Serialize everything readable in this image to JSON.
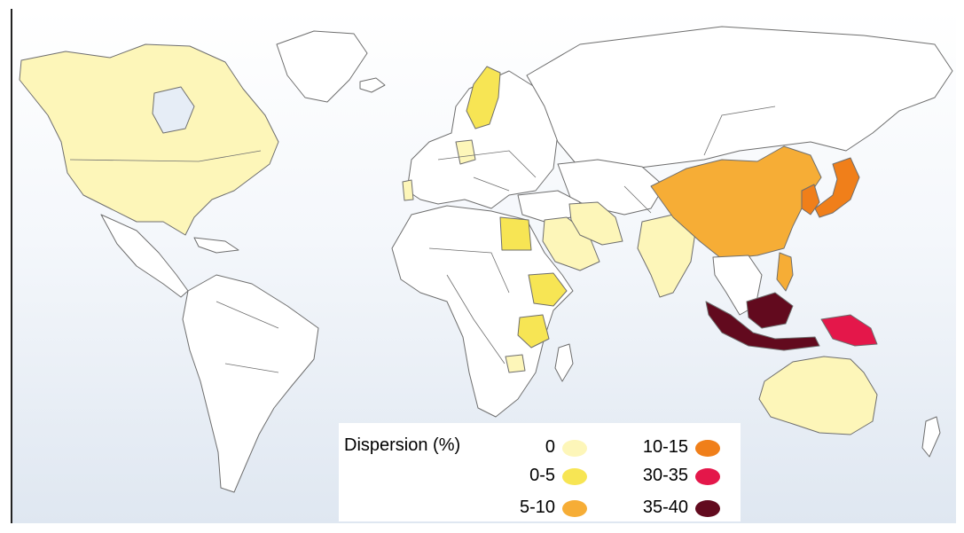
{
  "map": {
    "legend": {
      "title": "Dispersion (%)",
      "items": [
        {
          "label": "0",
          "color": "#fdf6b9"
        },
        {
          "label": "0-5",
          "color": "#f7e554"
        },
        {
          "label": "5-10",
          "color": "#f6ad36"
        },
        {
          "label": "10-15",
          "color": "#f07f1a"
        },
        {
          "label": "30-35",
          "color": "#e4174a"
        },
        {
          "label": "35-40",
          "color": "#620a1e"
        }
      ]
    },
    "colors": {
      "none": "#ffffff",
      "level_0": "#fdf6b9",
      "level_0_5": "#f7e554",
      "level_5_10": "#f6ad36",
      "level_10_15": "#f07f1a",
      "level_30_35": "#e4174a",
      "level_35_40": "#620a1e",
      "water": "#e6edf6"
    }
  }
}
